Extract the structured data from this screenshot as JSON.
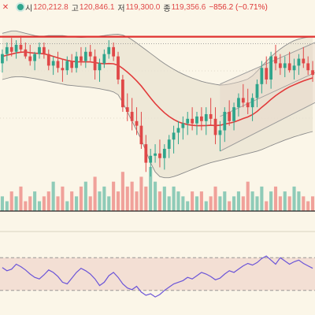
{
  "header": {
    "close_icon": "close-icon",
    "status_icon": "status-dot-icon",
    "open_label": "시",
    "open_value": "120,212.8",
    "high_label": "고",
    "high_value": "120,846.1",
    "low_label": "저",
    "low_value": "119,300.0",
    "close_label": "종",
    "close_value": "119,356.6",
    "change": "−856.2 (−0.71%)"
  },
  "colors": {
    "background": "#fbf6e8",
    "up": "#2fa58c",
    "down": "#e04848",
    "ma": "#e23b3b",
    "bollinger": "#8a8a8a",
    "channel": "#9a9a9a",
    "resistance": "#e0302f",
    "rsi_line": "#6b55d8",
    "rsi_band": "#efd6cc"
  },
  "chart_data": [
    {
      "type": "candlestick",
      "panel": "price",
      "bar_count": 68,
      "candles": [
        {
          "o": 5,
          "h": 11,
          "l": 1,
          "c": 9
        },
        {
          "o": 9,
          "h": 14,
          "l": 6,
          "c": 12
        },
        {
          "o": 12,
          "h": 16,
          "l": 8,
          "c": 10
        },
        {
          "o": 10,
          "h": 15,
          "l": 7,
          "c": 13
        },
        {
          "o": 13,
          "h": 17,
          "l": 10,
          "c": 11
        },
        {
          "o": 11,
          "h": 14,
          "l": 7,
          "c": 8
        },
        {
          "o": 8,
          "h": 13,
          "l": 4,
          "c": 6
        },
        {
          "o": 6,
          "h": 10,
          "l": 2,
          "c": 9
        },
        {
          "o": 9,
          "h": 14,
          "l": 7,
          "c": 12
        },
        {
          "o": 12,
          "h": 14,
          "l": 7,
          "c": 9
        },
        {
          "o": 9,
          "h": 11,
          "l": 2,
          "c": 4
        },
        {
          "o": 4,
          "h": 8,
          "l": 0,
          "c": 6
        },
        {
          "o": 6,
          "h": 10,
          "l": 1,
          "c": 3
        },
        {
          "o": 3,
          "h": 7,
          "l": -3,
          "c": 2
        },
        {
          "o": 2,
          "h": 8,
          "l": 0,
          "c": 6
        },
        {
          "o": 6,
          "h": 9,
          "l": 1,
          "c": 3
        },
        {
          "o": 3,
          "h": 10,
          "l": 1,
          "c": 8
        },
        {
          "o": 8,
          "h": 12,
          "l": 4,
          "c": 6
        },
        {
          "o": 6,
          "h": 12,
          "l": 3,
          "c": 10
        },
        {
          "o": 10,
          "h": 13,
          "l": 6,
          "c": 8
        },
        {
          "o": 8,
          "h": 11,
          "l": -2,
          "c": 2
        },
        {
          "o": 2,
          "h": 7,
          "l": -3,
          "c": 5
        },
        {
          "o": 5,
          "h": 11,
          "l": 3,
          "c": 9
        },
        {
          "o": 9,
          "h": 15,
          "l": 7,
          "c": 12
        },
        {
          "o": 12,
          "h": 14,
          "l": 6,
          "c": 8
        },
        {
          "o": 8,
          "h": 10,
          "l": -4,
          "c": -2
        },
        {
          "o": -2,
          "h": 0,
          "l": -16,
          "c": -14
        },
        {
          "o": -14,
          "h": -8,
          "l": -20,
          "c": -16
        },
        {
          "o": -16,
          "h": -10,
          "l": -24,
          "c": -20
        },
        {
          "o": -20,
          "h": -14,
          "l": -26,
          "c": -22
        },
        {
          "o": -22,
          "h": -16,
          "l": -32,
          "c": -30
        },
        {
          "o": -30,
          "h": -26,
          "l": -42,
          "c": -38
        },
        {
          "o": -38,
          "h": -32,
          "l": -44,
          "c": -35
        },
        {
          "o": -35,
          "h": -30,
          "l": -38,
          "c": -34
        },
        {
          "o": -34,
          "h": -28,
          "l": -40,
          "c": -36
        },
        {
          "o": -36,
          "h": -30,
          "l": -41,
          "c": -32
        },
        {
          "o": -32,
          "h": -26,
          "l": -36,
          "c": -28
        },
        {
          "o": -28,
          "h": -22,
          "l": -34,
          "c": -25
        },
        {
          "o": -25,
          "h": -20,
          "l": -30,
          "c": -23
        },
        {
          "o": -23,
          "h": -18,
          "l": -28,
          "c": -21
        },
        {
          "o": -21,
          "h": -16,
          "l": -26,
          "c": -19
        },
        {
          "o": -19,
          "h": -14,
          "l": -24,
          "c": -21
        },
        {
          "o": -21,
          "h": -16,
          "l": -26,
          "c": -18
        },
        {
          "o": -18,
          "h": -14,
          "l": -24,
          "c": -20
        },
        {
          "o": -20,
          "h": -14,
          "l": -26,
          "c": -17
        },
        {
          "o": -17,
          "h": -10,
          "l": -22,
          "c": -19
        },
        {
          "o": -19,
          "h": -14,
          "l": -30,
          "c": -26
        },
        {
          "o": -26,
          "h": -20,
          "l": -33,
          "c": -24
        },
        {
          "o": -24,
          "h": -14,
          "l": -29,
          "c": -16
        },
        {
          "o": -16,
          "h": -11,
          "l": -22,
          "c": -20
        },
        {
          "o": -20,
          "h": -12,
          "l": -24,
          "c": -14
        },
        {
          "o": -14,
          "h": -8,
          "l": -18,
          "c": -10
        },
        {
          "o": -10,
          "h": -4,
          "l": -14,
          "c": -12
        },
        {
          "o": -12,
          "h": -6,
          "l": -17,
          "c": -14
        },
        {
          "o": -14,
          "h": -8,
          "l": -20,
          "c": -10
        },
        {
          "o": -10,
          "h": -2,
          "l": -14,
          "c": -4
        },
        {
          "o": -4,
          "h": 6,
          "l": -8,
          "c": 3
        },
        {
          "o": 3,
          "h": 8,
          "l": -4,
          "c": -2
        },
        {
          "o": -2,
          "h": 10,
          "l": -6,
          "c": 8
        },
        {
          "o": 8,
          "h": 13,
          "l": 2,
          "c": 5
        },
        {
          "o": 5,
          "h": 9,
          "l": 0,
          "c": 3
        },
        {
          "o": 3,
          "h": 8,
          "l": -1,
          "c": 5
        },
        {
          "o": 5,
          "h": 10,
          "l": 1,
          "c": 2
        },
        {
          "o": 2,
          "h": 7,
          "l": -2,
          "c": 4
        },
        {
          "o": 4,
          "h": 9,
          "l": 0,
          "c": 7
        },
        {
          "o": 7,
          "h": 12,
          "l": 3,
          "c": 5
        },
        {
          "o": 5,
          "h": 8,
          "l": 0,
          "c": 2
        },
        {
          "o": 2,
          "h": 6,
          "l": -3,
          "c": 0
        }
      ],
      "ma": [
        8,
        8.5,
        9,
        9.5,
        9.8,
        9.9,
        9.6,
        9.4,
        9.3,
        9.1,
        8.6,
        8,
        7.4,
        6.8,
        6.3,
        5.9,
        5.7,
        5.6,
        5.6,
        5.6,
        5.3,
        5,
        4.8,
        4.9,
        4.8,
        4.2,
        2.8,
        1.2,
        -0.6,
        -2.6,
        -4.8,
        -7.4,
        -10,
        -12.4,
        -14.5,
        -16.4,
        -18,
        -19.3,
        -20.3,
        -21,
        -21.5,
        -21.8,
        -22,
        -22,
        -21.9,
        -21.8,
        -21.9,
        -21.8,
        -21.3,
        -20.9,
        -20.4,
        -19.7,
        -18.9,
        -18.2,
        -17.2,
        -15.8,
        -14,
        -12.4,
        -10.6,
        -9,
        -7.6,
        -6.3,
        -5.2,
        -4.3,
        -3.4,
        -2.6,
        -1.9,
        -1.3
      ],
      "bollinger_upper": [
        18,
        18.5,
        19,
        19,
        18.5,
        18,
        17.5,
        17,
        16.8,
        16.8,
        17,
        17,
        17,
        17,
        16.8,
        16.5,
        16.3,
        16.2,
        16.3,
        16.5,
        16.6,
        16.8,
        17,
        17.3,
        17.5,
        17.6,
        17.2,
        16.4,
        15.2,
        13.8,
        12.3,
        10.8,
        9.3,
        7.8,
        6.3,
        4.9,
        3.6,
        2.4,
        1.3,
        0.3,
        -0.6,
        -1.4,
        -2.1,
        -2.8,
        -3.3,
        -3.7,
        -4.1,
        -4.4,
        -4.3,
        -4,
        -3.6,
        -3.1,
        -2.5,
        -1.8,
        -0.4,
        1.6,
        3.8,
        5.8,
        7.8,
        9.6,
        11.2,
        12.6,
        13.8,
        14.8,
        15.5,
        16,
        16.3,
        16.4
      ],
      "bollinger_lower": [
        -2,
        -1.5,
        -1,
        -0.8,
        -0.8,
        -1,
        -1.3,
        -1.6,
        -2,
        -2.4,
        -2.8,
        -3.2,
        -3.6,
        -4,
        -4.4,
        -4.6,
        -4.8,
        -5,
        -5.2,
        -5.4,
        -5.7,
        -6,
        -6.4,
        -6.8,
        -7.4,
        -8.6,
        -12,
        -16,
        -20,
        -24,
        -28,
        -33,
        -38,
        -42,
        -44,
        -44.5,
        -44.5,
        -44,
        -43.3,
        -42.5,
        -41.7,
        -40.9,
        -40.1,
        -39.3,
        -38.6,
        -38,
        -37.5,
        -37,
        -36.5,
        -36,
        -35.5,
        -35,
        -34.5,
        -34,
        -33.5,
        -33,
        -32.3,
        -31.5,
        -30.6,
        -29.8,
        -29,
        -28.2,
        -27.5,
        -26.8,
        -26.2,
        -25.6,
        -25,
        -24.5
      ],
      "resistance": 16.5,
      "volume": [
        3,
        2,
        4,
        3,
        5,
        2,
        3,
        4,
        2,
        3,
        4,
        6,
        3,
        5,
        2,
        4,
        3,
        5,
        6,
        3,
        7,
        4,
        5,
        3,
        6,
        4,
        8,
        5,
        6,
        4,
        7,
        5,
        9,
        6,
        4,
        5,
        3,
        5,
        4,
        3,
        2,
        4,
        3,
        4,
        2,
        3,
        5,
        3,
        4,
        2,
        3,
        4,
        3,
        6,
        4,
        3,
        5,
        2,
        4,
        5,
        3,
        4,
        3,
        5,
        4,
        3,
        2,
        3
      ]
    },
    {
      "type": "line",
      "panel": "rsi",
      "ylim": [
        0,
        100
      ],
      "band": [
        30,
        70
      ],
      "values": [
        58,
        54,
        56,
        62,
        59,
        55,
        50,
        46,
        44,
        49,
        55,
        52,
        47,
        40,
        38,
        45,
        52,
        57,
        54,
        50,
        44,
        36,
        40,
        48,
        52,
        46,
        38,
        33,
        31,
        35,
        28,
        24,
        26,
        22,
        25,
        30,
        34,
        38,
        40,
        42,
        46,
        44,
        48,
        52,
        50,
        47,
        43,
        45,
        50,
        54,
        52,
        56,
        60,
        63,
        61,
        64,
        69,
        72,
        67,
        62,
        70,
        66,
        62,
        65,
        67,
        63,
        60,
        57
      ]
    }
  ]
}
